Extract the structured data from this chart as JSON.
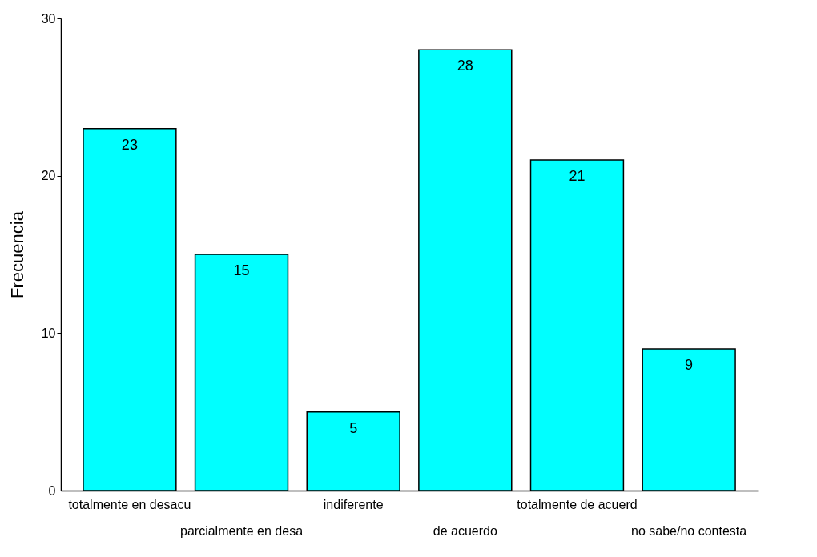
{
  "chart_data": {
    "type": "bar",
    "ylabel": "Frecuencia",
    "categories": [
      "totalmente en desacu",
      "parcialmente en desa",
      "indiferente",
      "de acuerdo",
      "totalmente de acuerd",
      "no sabe/no contesta"
    ],
    "values": [
      23,
      15,
      5,
      28,
      21,
      9
    ],
    "color": "#00ffff",
    "ylim": [
      0,
      30
    ],
    "yticks": [
      0,
      10,
      20,
      30
    ],
    "grid": false,
    "data_labels": true
  }
}
